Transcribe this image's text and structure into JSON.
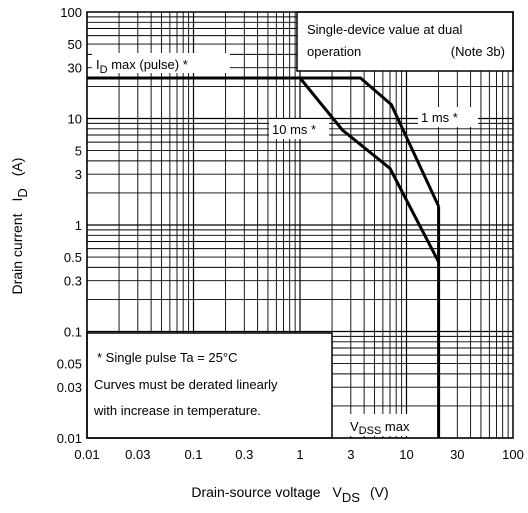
{
  "chart_data": {
    "type": "line",
    "x_scale": "log",
    "y_scale": "log",
    "xlim": [
      0.01,
      100
    ],
    "ylim": [
      0.01,
      100
    ],
    "grid": true,
    "xlabel": {
      "main": "Drain-source voltage",
      "symbol": "V",
      "sub": "DS",
      "unit": "(V)"
    },
    "ylabel": {
      "main": "Drain current",
      "symbol": "I",
      "sub": "D",
      "unit": "(A)"
    },
    "x_ticks": [
      {
        "v": 0.01,
        "t": "0.01"
      },
      {
        "v": 0.03,
        "t": "0.03"
      },
      {
        "v": 0.1,
        "t": "0.1"
      },
      {
        "v": 0.3,
        "t": "0.3"
      },
      {
        "v": 1,
        "t": "1"
      },
      {
        "v": 3,
        "t": "3"
      },
      {
        "v": 10,
        "t": "10"
      },
      {
        "v": 30,
        "t": "30"
      },
      {
        "v": 100,
        "t": "100"
      }
    ],
    "y_ticks": [
      {
        "v": 100,
        "t": "100"
      },
      {
        "v": 50,
        "t": "50"
      },
      {
        "v": 30,
        "t": "30"
      },
      {
        "v": 10,
        "t": "10"
      },
      {
        "v": 5,
        "t": "5"
      },
      {
        "v": 3,
        "t": "3"
      },
      {
        "v": 1,
        "t": "1"
      },
      {
        "v": 0.5,
        "t": "0.5"
      },
      {
        "v": 0.3,
        "t": "0.3"
      },
      {
        "v": 0.1,
        "t": "0.1"
      },
      {
        "v": 0.05,
        "t": "0.05"
      },
      {
        "v": 0.03,
        "t": "0.03"
      },
      {
        "v": 0.01,
        "t": "0.01"
      }
    ],
    "series": [
      {
        "name": "1 ms *",
        "points": [
          [
            0.01,
            24
          ],
          [
            3.7,
            24
          ],
          [
            7.2,
            13.5
          ],
          [
            20,
            1.5
          ]
        ]
      },
      {
        "name": "10 ms *",
        "points": [
          [
            1,
            24
          ],
          [
            2.5,
            7.8
          ],
          [
            7.0,
            3.4
          ],
          [
            20,
            0.45
          ]
        ]
      },
      {
        "name": "VDSS max",
        "points": [
          [
            20,
            0.01
          ],
          [
            20,
            1.5
          ]
        ]
      }
    ],
    "annotations": {
      "id_max_main": "I",
      "id_max_sub": "D",
      "id_max_rest": " max (pulse) *",
      "note_top_line1": "Single-device value at dual",
      "note_top_line2a": "operation",
      "note_top_line2b": "(Note 3b)",
      "note_bottom_line1": "*  Single pulse    Ta = 25°C",
      "note_bottom_line2": "Curves must be derated linearly",
      "note_bottom_line3": "with increase in temperature.",
      "vdss_main": "V",
      "vdss_sub": "DSS",
      "vdss_rest": " max"
    }
  }
}
